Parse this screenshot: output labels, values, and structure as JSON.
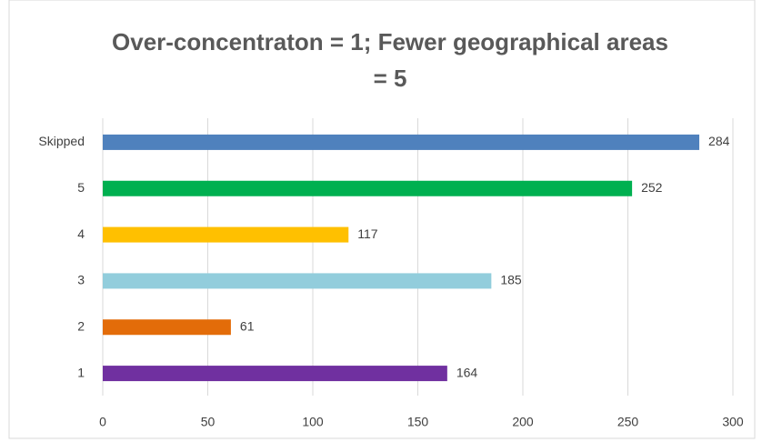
{
  "chart_data": {
    "type": "hbar",
    "title": "Over-concentraton = 1; Fewer geographical areas = 5",
    "categories": [
      "Skipped",
      "5",
      "4",
      "3",
      "2",
      "1"
    ],
    "values": [
      284,
      252,
      117,
      185,
      61,
      164
    ],
    "colors": [
      "#4f81bd",
      "#00b050",
      "#ffc000",
      "#92cddc",
      "#e36c09",
      "#7030a0"
    ],
    "xlim": [
      0,
      300
    ],
    "xticks": [
      0,
      50,
      100,
      150,
      200,
      250,
      300
    ],
    "grid": true
  }
}
